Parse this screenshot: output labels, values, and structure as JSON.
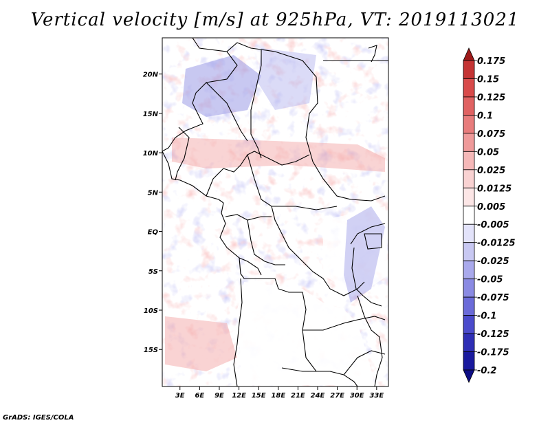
{
  "title": "Vertical velocity [m/s] at 925hPa, VT: 2019113021",
  "credit": "GrADS: IGES/COLA",
  "map": {
    "lon_labels": [
      "3E",
      "6E",
      "9E",
      "12E",
      "15E",
      "18E",
      "21E",
      "24E",
      "27E",
      "30E",
      "33E"
    ],
    "lon_values": [
      3,
      6,
      9,
      12,
      15,
      18,
      21,
      24,
      27,
      30,
      33
    ],
    "lat_labels": [
      "20N",
      "15N",
      "10N",
      "5N",
      "EQ",
      "5S",
      "10S",
      "15S"
    ],
    "lat_values": [
      20,
      15,
      10,
      5,
      0,
      -5,
      -10,
      -15
    ],
    "lon_range": [
      0.3,
      34.8
    ],
    "lat_range": [
      -19.7,
      24.6
    ]
  },
  "colorbar": {
    "labels": [
      "0.175",
      "0.15",
      "0.125",
      "0.1",
      "0.075",
      "0.05",
      "0.025",
      "0.0125",
      "0.005",
      "-0.005",
      "-0.0125",
      "-0.025",
      "-0.05",
      "-0.075",
      "-0.1",
      "-0.125",
      "-0.175",
      "-0.2"
    ],
    "colors": [
      "#9e1a1a",
      "#c43434",
      "#d84b4b",
      "#e06262",
      "#e87c7c",
      "#ef9a9a",
      "#f5b8b8",
      "#f9d2d2",
      "#fce6e6",
      "#ffffff",
      "#e3e3fa",
      "#c8c8f2",
      "#a9a9ec",
      "#8a8ae3",
      "#6b6bd9",
      "#4b4bcc",
      "#2e2eb5",
      "#1a1a9e",
      "#0d0d85"
    ]
  },
  "colors": {
    "red": "#f3a6a6",
    "blue": "#a8a8ec",
    "land_white": "#ffffff",
    "border": "#000000"
  }
}
